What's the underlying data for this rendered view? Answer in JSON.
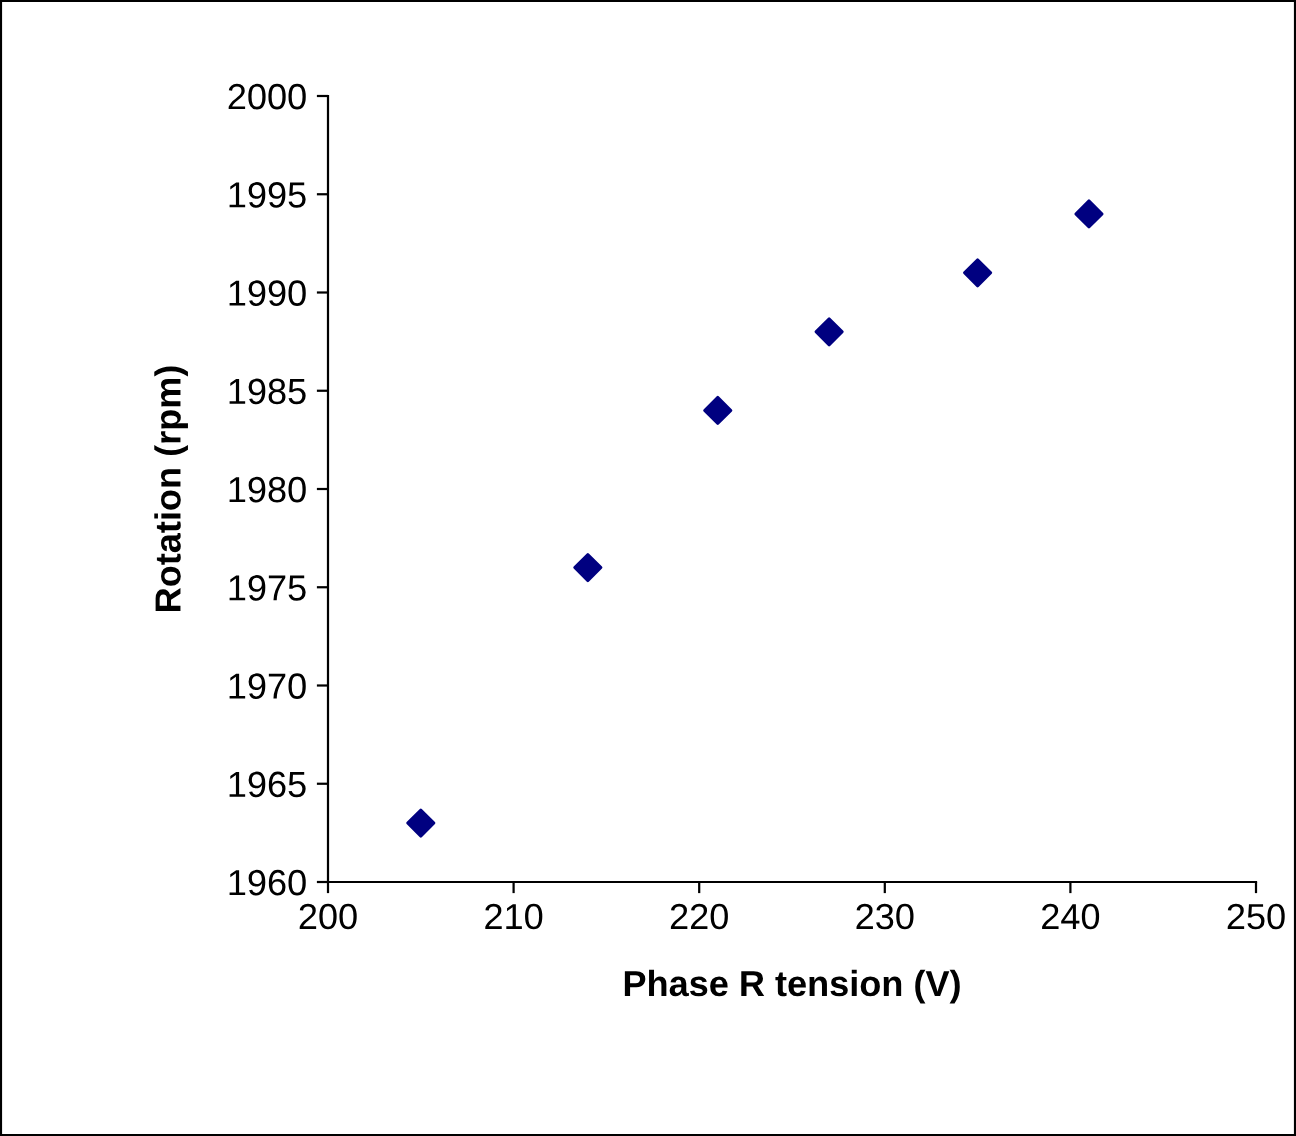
{
  "chart_data": {
    "type": "scatter",
    "xlabel": "Phase R tension (V)",
    "ylabel": "Rotation (rpm)",
    "x": [
      205,
      214,
      221,
      227,
      235,
      241
    ],
    "series": [
      {
        "color": "#000080",
        "values": [
          1963,
          1976,
          1984,
          1988,
          1991,
          1994
        ]
      }
    ],
    "xlim": [
      200,
      250
    ],
    "xticks": [
      200,
      210,
      220,
      230,
      240,
      250
    ],
    "ylim": [
      1960,
      2000
    ],
    "yticks": [
      1960,
      1965,
      1970,
      1975,
      1980,
      1985,
      1990,
      1995,
      2000
    ],
    "marker": "diamond",
    "grid": false,
    "legend": false
  }
}
